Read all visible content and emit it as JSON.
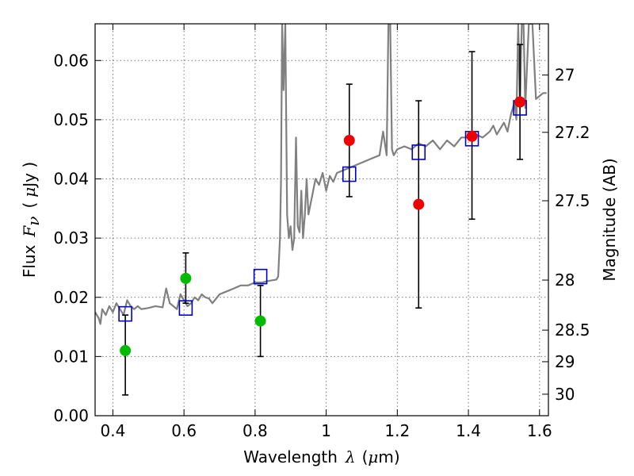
{
  "chart_data": {
    "type": "scatter",
    "title": "",
    "xlabel": {
      "prefix": "Wavelength",
      "symbol": "λ",
      "open": "(",
      "unit_symbol": "μ",
      "unit_rest": "m)"
    },
    "ylabel": {
      "prefix": "Flux",
      "symbol": "F",
      "sub": "ν",
      "open": "(",
      "unit_symbol": "μ",
      "unit_rest": "Jy )"
    },
    "y2label": "Magnitude (AB)",
    "xlim": [
      0.35,
      1.625
    ],
    "ylim": [
      0.0,
      0.0662
    ],
    "grid": true,
    "xticks": [
      {
        "value": 0.4,
        "label": "0.4"
      },
      {
        "value": 0.6,
        "label": "0.6"
      },
      {
        "value": 0.8,
        "label": "0.8"
      },
      {
        "value": 1.0,
        "label": "1"
      },
      {
        "value": 1.2,
        "label": "1.2"
      },
      {
        "value": 1.4,
        "label": "1.4"
      },
      {
        "value": 1.6,
        "label": "1.6"
      }
    ],
    "yticks": [
      {
        "value": 0.0,
        "label": "0.00"
      },
      {
        "value": 0.01,
        "label": "0.01"
      },
      {
        "value": 0.02,
        "label": "0.02"
      },
      {
        "value": 0.03,
        "label": "0.03"
      },
      {
        "value": 0.04,
        "label": "0.04"
      },
      {
        "value": 0.05,
        "label": "0.05"
      },
      {
        "value": 0.06,
        "label": "0.06"
      }
    ],
    "y2ticks": [
      {
        "mag": 27,
        "label": "27"
      },
      {
        "mag": 27.2,
        "label": "27.2"
      },
      {
        "mag": 27.5,
        "label": "27.5"
      },
      {
        "mag": 28,
        "label": "28"
      },
      {
        "mag": 28.5,
        "label": "28.5"
      },
      {
        "mag": 29,
        "label": "29"
      },
      {
        "mag": 30,
        "label": "30"
      }
    ],
    "colors": {
      "template": "#808080",
      "model": "#0000cc",
      "green": "#00bb00",
      "red": "#ee0000",
      "error": "#000000",
      "grid": "#777777"
    },
    "series": [
      {
        "name": "template_spectrum",
        "kind": "line",
        "x": [
          0.35,
          0.36,
          0.365,
          0.37,
          0.38,
          0.39,
          0.4,
          0.41,
          0.42,
          0.43,
          0.44,
          0.45,
          0.46,
          0.47,
          0.48,
          0.5,
          0.52,
          0.54,
          0.55,
          0.56,
          0.57,
          0.58,
          0.59,
          0.6,
          0.61,
          0.62,
          0.63,
          0.64,
          0.65,
          0.66,
          0.67,
          0.68,
          0.7,
          0.72,
          0.74,
          0.76,
          0.78,
          0.8,
          0.82,
          0.84,
          0.86,
          0.865,
          0.87,
          0.873,
          0.876,
          0.88,
          0.885,
          0.89,
          0.895,
          0.9,
          0.905,
          0.91,
          0.915,
          0.92,
          0.925,
          0.93,
          0.935,
          0.94,
          0.945,
          0.95,
          0.96,
          0.97,
          0.98,
          0.99,
          1.0,
          1.01,
          1.02,
          1.03,
          1.05,
          1.07,
          1.09,
          1.11,
          1.13,
          1.15,
          1.16,
          1.17,
          1.175,
          1.18,
          1.185,
          1.19,
          1.2,
          1.22,
          1.24,
          1.26,
          1.28,
          1.3,
          1.32,
          1.34,
          1.36,
          1.38,
          1.4,
          1.42,
          1.44,
          1.46,
          1.47,
          1.48,
          1.5,
          1.51,
          1.52,
          1.53,
          1.535,
          1.54,
          1.545,
          1.55,
          1.555,
          1.56,
          1.57,
          1.58,
          1.59,
          1.6,
          1.61,
          1.62
        ],
        "y": [
          0.0175,
          0.0165,
          0.0155,
          0.018,
          0.017,
          0.0185,
          0.0175,
          0.019,
          0.018,
          0.017,
          0.0195,
          0.0185,
          0.018,
          0.0185,
          0.018,
          0.0182,
          0.0185,
          0.0183,
          0.0215,
          0.019,
          0.0185,
          0.018,
          0.0205,
          0.0195,
          0.0185,
          0.019,
          0.02,
          0.0195,
          0.0205,
          0.02,
          0.0198,
          0.019,
          0.0205,
          0.021,
          0.0215,
          0.022,
          0.022,
          0.0225,
          0.0225,
          0.0228,
          0.023,
          0.0235,
          0.03,
          0.04,
          0.0662,
          0.055,
          0.0662,
          0.034,
          0.03,
          0.032,
          0.028,
          0.03,
          0.047,
          0.032,
          0.031,
          0.038,
          0.03,
          0.034,
          0.04,
          0.034,
          0.037,
          0.04,
          0.039,
          0.041,
          0.038,
          0.0405,
          0.0395,
          0.041,
          0.0415,
          0.042,
          0.0425,
          0.043,
          0.0435,
          0.044,
          0.048,
          0.044,
          0.0662,
          0.0662,
          0.045,
          0.044,
          0.045,
          0.0455,
          0.045,
          0.046,
          0.0455,
          0.0465,
          0.045,
          0.0465,
          0.0455,
          0.047,
          0.047,
          0.0475,
          0.047,
          0.048,
          0.049,
          0.0475,
          0.0495,
          0.048,
          0.051,
          0.053,
          0.05,
          0.0662,
          0.052,
          0.0662,
          0.0662,
          0.052,
          0.0662,
          0.0662,
          0.0535,
          0.054,
          0.0545,
          0.0545
        ]
      },
      {
        "name": "model_magnitudes",
        "kind": "open-square",
        "x": [
          0.435,
          0.605,
          0.815,
          1.065,
          1.26,
          1.41,
          1.545
        ],
        "y": [
          0.0172,
          0.0182,
          0.0235,
          0.0408,
          0.0445,
          0.0468,
          0.052
        ]
      },
      {
        "name": "green_detections",
        "kind": "filled-circle",
        "x": [
          0.435,
          0.605,
          0.815
        ],
        "y": [
          0.011,
          0.0232,
          0.016
        ],
        "yerr_low": [
          0.0035,
          0.019,
          0.01
        ],
        "yerr_high": [
          0.017,
          0.0275,
          0.022
        ]
      },
      {
        "name": "red_detections",
        "kind": "filled-circle",
        "x": [
          1.065,
          1.26,
          1.41,
          1.545
        ],
        "y": [
          0.0465,
          0.0357,
          0.0472,
          0.053
        ],
        "yerr_low": [
          0.037,
          0.0182,
          0.0332,
          0.0433
        ],
        "yerr_high": [
          0.056,
          0.0532,
          0.0615,
          0.0627
        ]
      }
    ]
  }
}
